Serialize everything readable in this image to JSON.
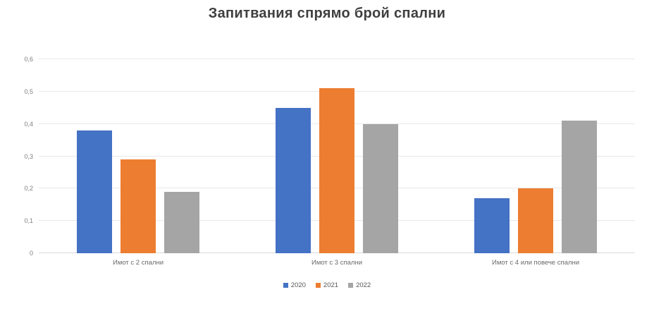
{
  "chart_data": {
    "type": "bar",
    "title": "Запитвания спрямо брой спални",
    "categories": [
      "Имот с 2 спални",
      "Имот с 3 спални",
      "Имот с 4 или повече спални"
    ],
    "series": [
      {
        "name": "2020",
        "color": "#4472C4",
        "values": [
          0.38,
          0.45,
          0.17
        ]
      },
      {
        "name": "2021",
        "color": "#ED7D31",
        "values": [
          0.29,
          0.51,
          0.2
        ]
      },
      {
        "name": "2022",
        "color": "#A5A5A5",
        "values": [
          0.19,
          0.4,
          0.41
        ]
      }
    ],
    "xlabel": "",
    "ylabel": "",
    "ylim": [
      0,
      0.6
    ],
    "ytick_step": 0.1,
    "yticks": [
      "0",
      "0,1",
      "0,2",
      "0,3",
      "0,4",
      "0,5",
      "0,6"
    ],
    "grid": true,
    "legend_position": "bottom"
  },
  "colors": {
    "background": "#ffffff",
    "gridline": "#e8e8e8",
    "axis_line": "#d9d9d9",
    "title_text": "#3f3f3f",
    "tick_text": "#7f7f7f",
    "category_text": "#6a6a6a",
    "legend_text": "#595959"
  }
}
